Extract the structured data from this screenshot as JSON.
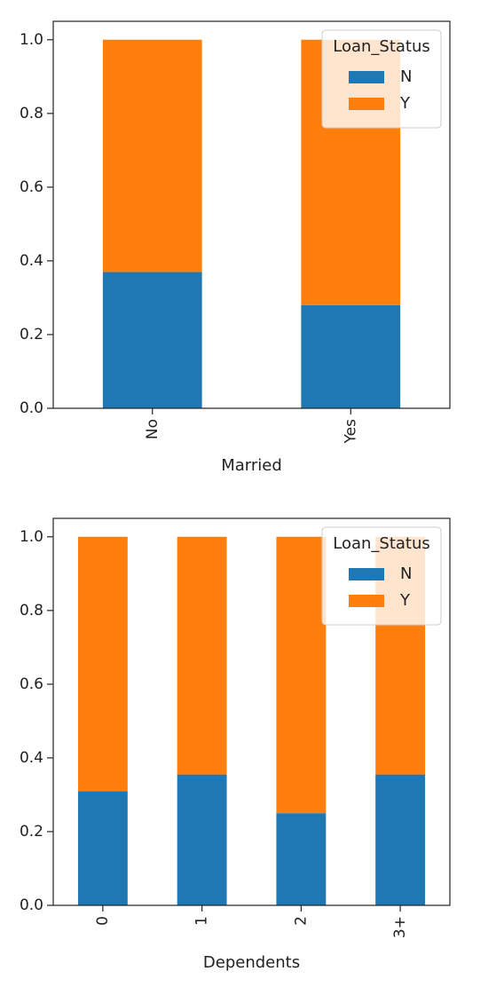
{
  "chart_data": [
    {
      "type": "bar",
      "stacked": true,
      "categories": [
        "No",
        "Yes"
      ],
      "series": [
        {
          "name": "N",
          "values": [
            0.37,
            0.28
          ]
        },
        {
          "name": "Y",
          "values": [
            0.63,
            0.72
          ]
        }
      ],
      "xlabel": "Married",
      "ylabel": "",
      "ylim": [
        0,
        1.05
      ],
      "yticks": [
        "0.0",
        "0.2",
        "0.4",
        "0.6",
        "0.8",
        "1.0"
      ],
      "legend": {
        "title": "Loan_Status",
        "placement": "top-right"
      },
      "grid": false,
      "colors": {
        "N": "#1f77b4",
        "Y": "#ff7f0e"
      }
    },
    {
      "type": "bar",
      "stacked": true,
      "categories": [
        "0",
        "1",
        "2",
        "3+"
      ],
      "series": [
        {
          "name": "N",
          "values": [
            0.31,
            0.355,
            0.25,
            0.355
          ]
        },
        {
          "name": "Y",
          "values": [
            0.69,
            0.645,
            0.75,
            0.645
          ]
        }
      ],
      "xlabel": "Dependents",
      "ylabel": "",
      "ylim": [
        0,
        1.05
      ],
      "yticks": [
        "0.0",
        "0.2",
        "0.4",
        "0.6",
        "0.8",
        "1.0"
      ],
      "legend": {
        "title": "Loan_Status",
        "placement": "top-right"
      },
      "grid": false,
      "colors": {
        "N": "#1f77b4",
        "Y": "#ff7f0e"
      }
    }
  ]
}
